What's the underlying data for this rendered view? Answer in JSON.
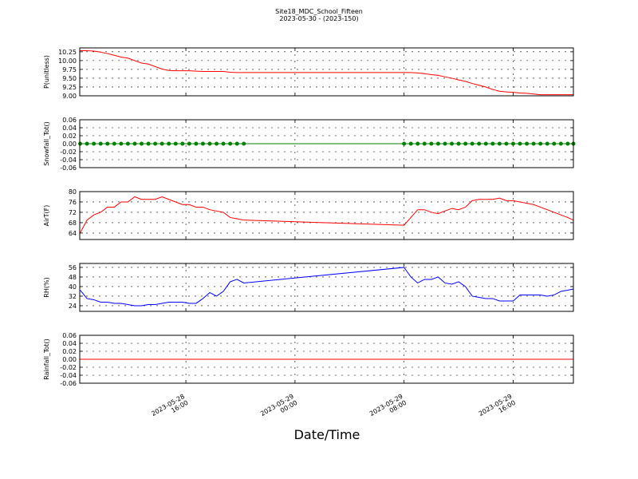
{
  "chart_data": [
    {
      "type": "line",
      "title": "Site18_MDC_School_Fifteen",
      "subtitle": "2023-05-30 - (2023-150)",
      "ylabel": "P(unitless)",
      "color": "#ff0000",
      "grid": true,
      "ylim": [
        9.0,
        10.36
      ],
      "yticks": [
        {
          "value": 9,
          "label": "9.00"
        },
        9.25,
        {
          "value": 9.5,
          "label": "9.50"
        },
        9.75,
        {
          "value": 10,
          "label": "10.00"
        },
        10.25
      ],
      "values": [
        10.28,
        10.28,
        10.27,
        10.24,
        10.2,
        10.15,
        10.1,
        10.07,
        10.0,
        9.93,
        9.9,
        9.83,
        9.76,
        9.72,
        9.71,
        9.71,
        9.71,
        9.7,
        9.69,
        9.69,
        9.69,
        9.69,
        9.67,
        9.66,
        9.66,
        9.66,
        9.66,
        9.65,
        9.63,
        9.6,
        9.58,
        9.54,
        9.5,
        9.45,
        9.41,
        9.35,
        9.3,
        9.25,
        9.18,
        9.13,
        9.11,
        9.1,
        9.08,
        9.07,
        9.05,
        9.03,
        9.03,
        9.03,
        9.03,
        9.03,
        9.03
      ]
    },
    {
      "type": "line",
      "ylabel": "Snowfall_Tot()",
      "color": "#008000",
      "markers": true,
      "grid": true,
      "ylim": [
        -0.06,
        0.06
      ],
      "yticks": [
        -0.06,
        -0.04,
        -0.02,
        {
          "value": 0,
          "label": "0.00"
        },
        0.02,
        0.04,
        0.06
      ],
      "values": [
        0,
        0,
        0,
        0,
        0,
        0,
        0,
        0,
        0,
        0,
        0,
        0,
        0,
        0,
        0,
        0,
        0,
        0,
        0,
        0,
        0,
        0,
        0,
        0,
        0,
        0,
        0,
        0,
        0,
        0,
        0,
        0,
        0,
        0,
        0,
        0,
        0,
        0,
        0,
        0,
        0,
        0,
        0,
        0,
        0,
        0,
        0,
        0,
        0,
        0,
        0
      ]
    },
    {
      "type": "line",
      "ylabel": "AirT(F)",
      "color": "#ff0000",
      "grid": true,
      "ylim": [
        61.5,
        80
      ],
      "yticks": [
        64,
        68,
        72,
        76,
        80
      ],
      "values": [
        64,
        69,
        71,
        72,
        74,
        74,
        76,
        76,
        78,
        77,
        77,
        77,
        78,
        77,
        76,
        75,
        75,
        74,
        74,
        73,
        72.5,
        72,
        70,
        69.5,
        69,
        67,
        70,
        73,
        73,
        72,
        71.5,
        72.5,
        73.5,
        73,
        74,
        76.5,
        77,
        77,
        77,
        77.5,
        76.5,
        76.5,
        76,
        75.5,
        75,
        74,
        73,
        72,
        71,
        70,
        69
      ]
    },
    {
      "type": "line",
      "ylabel": "RH(%)",
      "color": "#0000ff",
      "grid": true,
      "ylim": [
        19.3,
        59.3
      ],
      "yticks": [
        24,
        32,
        40,
        48,
        56
      ],
      "values": [
        37,
        30,
        29,
        27,
        27,
        26,
        26,
        25,
        24,
        24,
        25,
        25,
        26,
        27,
        27,
        27,
        26,
        26,
        30,
        35,
        32,
        36,
        44,
        46,
        43,
        56,
        48,
        43,
        46,
        46,
        48,
        43,
        42,
        44,
        40,
        32,
        31,
        30,
        30,
        28,
        28,
        28,
        33,
        33,
        33,
        33,
        32,
        33,
        36,
        37,
        38
      ]
    },
    {
      "type": "line",
      "ylabel": "Rainfall_Tot()",
      "xlabel": "Date/Time",
      "color": "#ff0000",
      "grid": true,
      "ylim": [
        -0.06,
        0.06
      ],
      "yticks": [
        -0.06,
        -0.04,
        -0.02,
        {
          "value": 0,
          "label": "0.00"
        },
        0.02,
        0.04,
        0.06
      ],
      "values": [
        0,
        0,
        0,
        0,
        0,
        0,
        0,
        0,
        0,
        0,
        0,
        0,
        0,
        0,
        0,
        0,
        0,
        0,
        0,
        0,
        0,
        0,
        0,
        0,
        0,
        0,
        0,
        0,
        0,
        0,
        0,
        0,
        0,
        0,
        0,
        0,
        0,
        0,
        0,
        0,
        0,
        0,
        0,
        0,
        0,
        0,
        0,
        0,
        0,
        0,
        0
      ],
      "xlim": [
        "2023-05-28 08:13",
        "2023-05-29 20:25"
      ],
      "xticks": [
        "2023-05-28 16:00",
        "2023-05-29 00:00",
        "2023-05-29 08:00",
        "2023-05-29 16:00"
      ],
      "x": [
        "2023-05-28 08:15",
        "2023-05-28 08:45",
        "2023-05-28 09:15",
        "2023-05-28 09:45",
        "2023-05-28 10:15",
        "2023-05-28 10:45",
        "2023-05-28 11:15",
        "2023-05-28 11:45",
        "2023-05-28 12:15",
        "2023-05-28 12:45",
        "2023-05-28 13:15",
        "2023-05-28 13:45",
        "2023-05-28 14:15",
        "2023-05-28 14:45",
        "2023-05-28 15:15",
        "2023-05-28 15:45",
        "2023-05-28 16:15",
        "2023-05-28 16:45",
        "2023-05-28 17:15",
        "2023-05-28 17:45",
        "2023-05-28 18:15",
        "2023-05-28 18:45",
        "2023-05-28 19:15",
        "2023-05-28 19:45",
        "2023-05-28 20:15",
        "2023-05-29 08:00",
        "2023-05-29 08:30",
        "2023-05-29 09:00",
        "2023-05-29 09:30",
        "2023-05-29 10:00",
        "2023-05-29 10:30",
        "2023-05-29 11:00",
        "2023-05-29 11:30",
        "2023-05-29 12:00",
        "2023-05-29 12:30",
        "2023-05-29 13:00",
        "2023-05-29 13:30",
        "2023-05-29 14:00",
        "2023-05-29 14:30",
        "2023-05-29 15:00",
        "2023-05-29 15:30",
        "2023-05-29 16:00",
        "2023-05-29 16:30",
        "2023-05-29 17:00",
        "2023-05-29 17:30",
        "2023-05-29 18:00",
        "2023-05-29 18:30",
        "2023-05-29 19:00",
        "2023-05-29 19:30",
        "2023-05-29 20:00",
        "2023-05-29 20:25"
      ]
    }
  ]
}
